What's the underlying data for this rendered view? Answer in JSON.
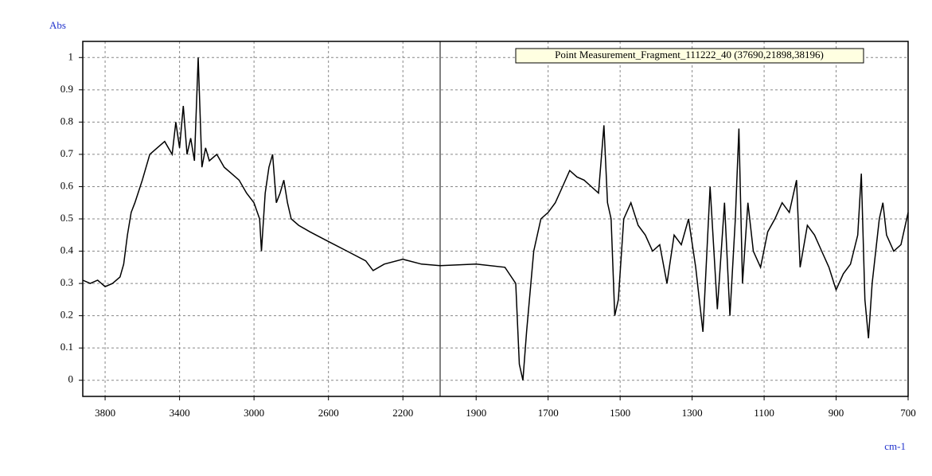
{
  "chart_data": {
    "type": "line",
    "y_label": "Abs",
    "x_label": "cm-1",
    "x": [
      3920,
      3880,
      3840,
      3800,
      3760,
      3720,
      3700,
      3680,
      3660,
      3640,
      3600,
      3560,
      3520,
      3480,
      3440,
      3420,
      3400,
      3380,
      3360,
      3340,
      3320,
      3300,
      3280,
      3260,
      3240,
      3200,
      3160,
      3120,
      3080,
      3040,
      3000,
      2970,
      2960,
      2940,
      2920,
      2900,
      2880,
      2860,
      2840,
      2820,
      2800,
      2760,
      2700,
      2600,
      2500,
      2400,
      2360,
      2300,
      2200,
      2100,
      2000,
      1900,
      1820,
      1790,
      1780,
      1770,
      1760,
      1740,
      1720,
      1700,
      1680,
      1660,
      1640,
      1620,
      1600,
      1580,
      1560,
      1545,
      1535,
      1525,
      1515,
      1505,
      1490,
      1470,
      1450,
      1430,
      1410,
      1390,
      1370,
      1350,
      1330,
      1310,
      1290,
      1270,
      1250,
      1230,
      1210,
      1195,
      1180,
      1170,
      1160,
      1145,
      1130,
      1110,
      1090,
      1070,
      1050,
      1030,
      1010,
      1000,
      980,
      960,
      940,
      920,
      900,
      880,
      860,
      840,
      830,
      820,
      810,
      800,
      790,
      780,
      770,
      760,
      740,
      720,
      700
    ],
    "series": [
      {
        "name": "Point Measurement_Fragment_111222_40 (37690,21898,38196)",
        "color": "#000000",
        "values": [
          0.31,
          0.3,
          0.31,
          0.29,
          0.3,
          0.32,
          0.36,
          0.45,
          0.52,
          0.55,
          0.62,
          0.7,
          0.72,
          0.74,
          0.7,
          0.8,
          0.72,
          0.85,
          0.7,
          0.75,
          0.68,
          1.0,
          0.66,
          0.72,
          0.68,
          0.7,
          0.66,
          0.64,
          0.62,
          0.58,
          0.55,
          0.5,
          0.4,
          0.58,
          0.66,
          0.7,
          0.55,
          0.58,
          0.62,
          0.55,
          0.5,
          0.48,
          0.46,
          0.43,
          0.4,
          0.37,
          0.34,
          0.36,
          0.375,
          0.36,
          0.355,
          0.36,
          0.35,
          0.3,
          0.05,
          0.0,
          0.15,
          0.4,
          0.5,
          0.52,
          0.55,
          0.6,
          0.65,
          0.63,
          0.62,
          0.6,
          0.58,
          0.79,
          0.55,
          0.5,
          0.2,
          0.25,
          0.5,
          0.55,
          0.48,
          0.45,
          0.4,
          0.42,
          0.3,
          0.45,
          0.42,
          0.5,
          0.35,
          0.15,
          0.6,
          0.22,
          0.55,
          0.2,
          0.5,
          0.78,
          0.3,
          0.55,
          0.4,
          0.35,
          0.46,
          0.5,
          0.55,
          0.52,
          0.62,
          0.35,
          0.48,
          0.45,
          0.4,
          0.35,
          0.28,
          0.33,
          0.36,
          0.45,
          0.64,
          0.25,
          0.13,
          0.3,
          0.4,
          0.5,
          0.55,
          0.45,
          0.4,
          0.42,
          0.52
        ]
      }
    ],
    "xlim": [
      3920,
      700
    ],
    "xbreak": 2000,
    "xticks": [
      3800,
      3400,
      3000,
      2600,
      2200,
      1900,
      1700,
      1500,
      1300,
      1100,
      900,
      700
    ],
    "ylim": [
      -0.05,
      1.05
    ],
    "yticks": [
      0,
      0.1,
      0.2,
      0.3,
      0.4,
      0.5,
      0.6,
      0.7,
      0.8,
      0.9,
      1
    ],
    "grid": true
  }
}
